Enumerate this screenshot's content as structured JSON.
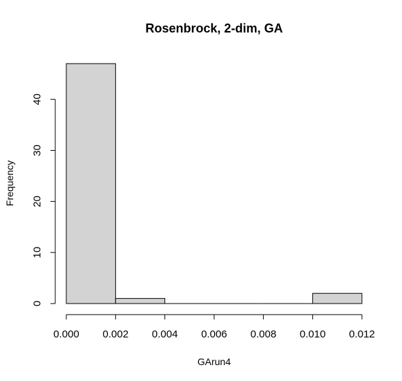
{
  "chart_data": {
    "type": "bar",
    "title": "Rosenbrock, 2-dim, GA",
    "xlabel": "GArun4",
    "ylabel": "Frequency",
    "bins": [
      {
        "from": 0.0,
        "to": 0.002,
        "count": 47
      },
      {
        "from": 0.002,
        "to": 0.004,
        "count": 1
      },
      {
        "from": 0.004,
        "to": 0.006,
        "count": 0
      },
      {
        "from": 0.006,
        "to": 0.008,
        "count": 0
      },
      {
        "from": 0.008,
        "to": 0.01,
        "count": 0
      },
      {
        "from": 0.01,
        "to": 0.012,
        "count": 2
      }
    ],
    "xlim": [
      0.0,
      0.012
    ],
    "ylim": [
      0,
      47
    ],
    "x_ticks": [
      "0.000",
      "0.002",
      "0.004",
      "0.006",
      "0.008",
      "0.010",
      "0.012"
    ],
    "x_tick_values": [
      0.0,
      0.002,
      0.004,
      0.006,
      0.008,
      0.01,
      0.012
    ],
    "y_ticks": [
      "0",
      "10",
      "20",
      "30",
      "40"
    ],
    "y_tick_values": [
      0,
      10,
      20,
      30,
      40
    ],
    "bar_fill": "#d3d3d3",
    "bar_stroke": "#000000",
    "grid": false,
    "legend": "none"
  }
}
